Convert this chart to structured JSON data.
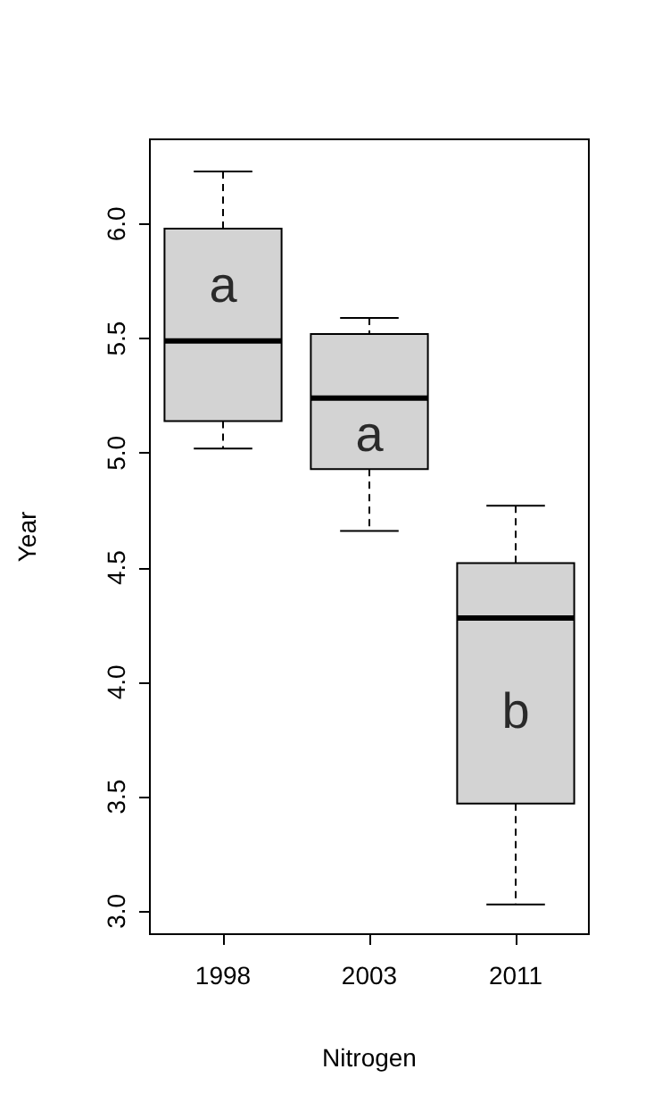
{
  "chart_data": {
    "type": "box",
    "xlabel": "Nitrogen",
    "ylabel": "Year",
    "categories": [
      "1998",
      "2003",
      "2011"
    ],
    "boxes": [
      {
        "low": 5.02,
        "q1": 5.14,
        "median": 5.49,
        "q3": 5.98,
        "high": 6.23
      },
      {
        "low": 4.66,
        "q1": 4.93,
        "median": 5.24,
        "q3": 5.52,
        "high": 5.59
      },
      {
        "low": 3.03,
        "q1": 3.47,
        "median": 4.28,
        "q3": 4.52,
        "high": 4.77
      }
    ],
    "color": "#d3d3d3",
    "ylim": [
      2.9,
      6.37
    ],
    "yticks": [
      {
        "value": 3,
        "label": "3.0"
      },
      3.5,
      {
        "value": 4,
        "label": "4.0"
      },
      4.5,
      {
        "value": 5,
        "label": "5.0"
      },
      5.5,
      {
        "value": 6,
        "label": "6.0"
      }
    ],
    "grid": false,
    "annotations": [
      "a",
      "a",
      "b"
    ]
  }
}
